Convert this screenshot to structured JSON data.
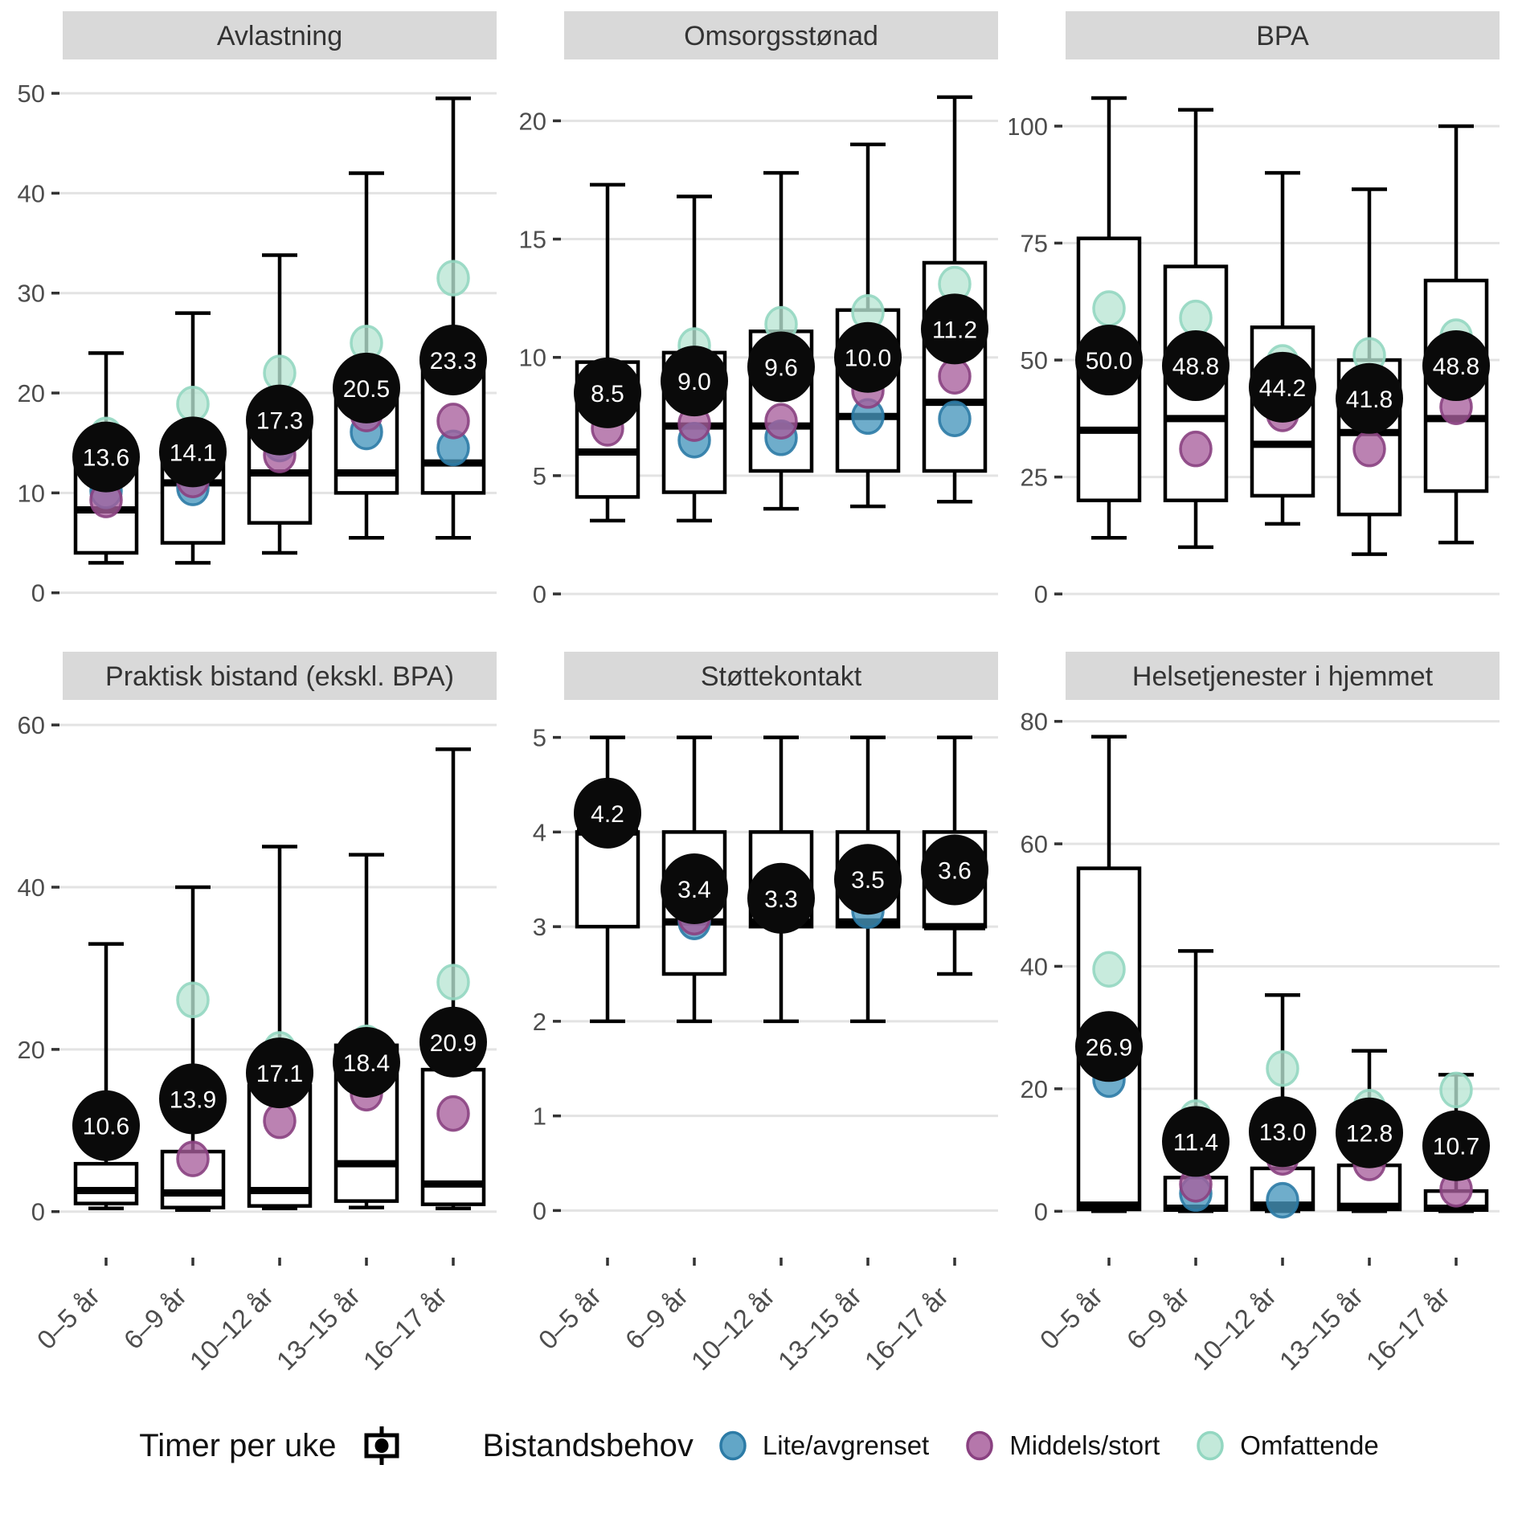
{
  "legend": {
    "mean_label": "Timer per uke",
    "mean_icon": "boxplot-key-icon",
    "group_label": "Bistandsbehov",
    "items": [
      {
        "label": "Lite/avgrenset",
        "fill": "#4796bd",
        "stroke": "#2c7ba6"
      },
      {
        "label": "Middels/stort",
        "fill": "#a85f9c",
        "stroke": "#8a4181"
      },
      {
        "label": "Omfattende",
        "fill": "#b9e5d4",
        "stroke": "#93d7c1"
      }
    ]
  },
  "colors": {
    "strip_bg": "#d9d9d9",
    "strip_text": "#333333",
    "grid": "#e3e3e3",
    "axis_text": "#4d4d4d",
    "tick_mark": "#333333",
    "box_stroke": "#000000",
    "box_fill": "#ffffff",
    "mean_fill": "#0a0a0a",
    "mean_text": "#ffffff",
    "background": "#ffffff"
  },
  "categories": [
    "0–5 år",
    "6–9 år",
    "10–12 år",
    "13–15 år",
    "16–17 år"
  ],
  "chart_data": [
    {
      "type": "boxplot",
      "title": "Avlastning",
      "row": 0,
      "ylim": [
        -2.6,
        52.1
      ],
      "yticks": [
        0,
        10,
        20,
        30,
        40,
        50
      ],
      "boxes": [
        {
          "min": 3,
          "q1": 4,
          "median": 8.3,
          "q3": 13,
          "max": 24,
          "mean_label": "13.6",
          "dots": {
            "lite": 10.2,
            "middels": 9.3,
            "omfattende": 15.8
          }
        },
        {
          "min": 3,
          "q1": 5,
          "median": 11,
          "q3": 15,
          "max": 28,
          "mean_label": "14.1",
          "dots": {
            "lite": 10.5,
            "middels": 11.3,
            "omfattende": 18.9
          }
        },
        {
          "min": 4,
          "q1": 7,
          "median": 12,
          "q3": 18,
          "max": 33.8,
          "mean_label": "17.3",
          "dots": {
            "lite": 14.9,
            "middels": 13.8,
            "omfattende": 22.0
          }
        },
        {
          "min": 5.5,
          "q1": 10,
          "median": 12,
          "q3": 21,
          "max": 42,
          "mean_label": "20.5",
          "dots": {
            "lite": 16.1,
            "middels": 17.9,
            "omfattende": 25.0
          }
        },
        {
          "min": 5.5,
          "q1": 10,
          "median": 13,
          "q3": 24,
          "max": 49.5,
          "mean_label": "23.3",
          "dots": {
            "lite": 14.5,
            "middels": 17.2,
            "omfattende": 31.5
          }
        }
      ]
    },
    {
      "type": "boxplot",
      "title": "Omsorgsstønad",
      "row": 0,
      "ylim": [
        -1.05,
        22.05
      ],
      "yticks": [
        0,
        5,
        10,
        15,
        20
      ],
      "boxes": [
        {
          "min": 3.1,
          "q1": 4.1,
          "median": 6.0,
          "q3": 9.8,
          "max": 17.3,
          "mean_label": "8.5",
          "dots": {
            "lite": null,
            "middels": 7.0,
            "omfattende": null
          }
        },
        {
          "min": 3.1,
          "q1": 4.3,
          "median": 7.1,
          "q3": 10.2,
          "max": 16.8,
          "mean_label": "9.0",
          "dots": {
            "lite": 6.5,
            "middels": 7.2,
            "omfattende": 10.5
          }
        },
        {
          "min": 3.6,
          "q1": 5.2,
          "median": 7.1,
          "q3": 11.1,
          "max": 17.8,
          "mean_label": "9.6",
          "dots": {
            "lite": 6.6,
            "middels": 7.3,
            "omfattende": 11.4
          }
        },
        {
          "min": 3.7,
          "q1": 5.2,
          "median": 7.5,
          "q3": 12.0,
          "max": 19.0,
          "mean_label": "10.0",
          "dots": {
            "lite": 7.5,
            "middels": 8.6,
            "omfattende": 11.9
          }
        },
        {
          "min": 3.9,
          "q1": 5.2,
          "median": 8.1,
          "q3": 14.0,
          "max": 21.0,
          "mean_label": "11.2",
          "dots": {
            "lite": 7.4,
            "middels": 9.2,
            "omfattende": 13.1
          }
        }
      ]
    },
    {
      "type": "boxplot",
      "title": "BPA",
      "row": 0,
      "ylim": [
        -5.3,
        111.5
      ],
      "yticks": [
        0,
        25,
        50,
        75,
        100
      ],
      "boxes": [
        {
          "min": 12,
          "q1": 20,
          "median": 35,
          "q3": 76,
          "max": 106,
          "mean_label": "50.0",
          "dots": {
            "lite": null,
            "middels": null,
            "omfattende": 61
          }
        },
        {
          "min": 10,
          "q1": 20,
          "median": 37.5,
          "q3": 70,
          "max": 103.5,
          "mean_label": "48.8",
          "dots": {
            "lite": null,
            "middels": 31,
            "omfattende": 59
          }
        },
        {
          "min": 15,
          "q1": 21,
          "median": 32,
          "q3": 57,
          "max": 90,
          "mean_label": "44.2",
          "dots": {
            "lite": null,
            "middels": 38.5,
            "omfattende": 49.5
          }
        },
        {
          "min": 8.5,
          "q1": 17,
          "median": 34.5,
          "q3": 50,
          "max": 86.5,
          "mean_label": "41.8",
          "dots": {
            "lite": null,
            "middels": 31,
            "omfattende": 51
          }
        },
        {
          "min": 11,
          "q1": 22,
          "median": 37.5,
          "q3": 67,
          "max": 100,
          "mean_label": "48.8",
          "dots": {
            "lite": null,
            "middels": 40,
            "omfattende": 55
          }
        }
      ]
    },
    {
      "type": "boxplot",
      "title": "Praktisk bistand (ekskl. BPA)",
      "row": 1,
      "ylim": [
        -2.9,
        61.5
      ],
      "yticks": [
        0,
        20,
        40,
        60
      ],
      "boxes": [
        {
          "min": 0.4,
          "q1": 1,
          "median": 2.6,
          "q3": 5.9,
          "max": 33,
          "mean_label": "10.6",
          "dots": {
            "lite": null,
            "middels": null,
            "omfattende": null
          }
        },
        {
          "min": 0.2,
          "q1": 0.5,
          "median": 2.3,
          "q3": 7.4,
          "max": 40,
          "mean_label": "13.9",
          "dots": {
            "lite": null,
            "middels": 6.5,
            "omfattende": 26.1
          }
        },
        {
          "min": 0.4,
          "q1": 0.7,
          "median": 2.6,
          "q3": 15.5,
          "max": 45,
          "mean_label": "17.1",
          "dots": {
            "lite": null,
            "middels": 11.2,
            "omfattende": 20.0
          }
        },
        {
          "min": 0.5,
          "q1": 1.3,
          "median": 5.9,
          "q3": 20.5,
          "max": 44,
          "mean_label": "18.4",
          "dots": {
            "lite": null,
            "middels": 14.6,
            "omfattende": 20.8
          }
        },
        {
          "min": 0.4,
          "q1": 0.9,
          "median": 3.4,
          "q3": 17.5,
          "max": 57,
          "mean_label": "20.9",
          "dots": {
            "lite": null,
            "middels": 12.1,
            "omfattende": 28.3
          }
        }
      ]
    },
    {
      "type": "boxplot",
      "title": "Støttekontakt",
      "row": 1,
      "ylim": [
        -0.26,
        5.26
      ],
      "yticks": [
        0,
        1,
        2,
        3,
        4,
        5
      ],
      "boxes": [
        {
          "min": 2,
          "q1": 3,
          "median": 4,
          "q3": 4,
          "max": 5,
          "mean_label": "4.2",
          "dots": {
            "lite": null,
            "middels": null,
            "omfattende": null
          }
        },
        {
          "min": 2,
          "q1": 2.5,
          "median": 3.05,
          "q3": 4,
          "max": 5,
          "mean_label": "3.4",
          "dots": {
            "lite": 3.05,
            "middels": 3.1,
            "omfattende": null
          }
        },
        {
          "min": 2,
          "q1": 3,
          "median": 3.05,
          "q3": 4,
          "max": 5,
          "mean_label": "3.3",
          "dots": {
            "lite": null,
            "middels": null,
            "omfattende": null
          }
        },
        {
          "min": 2,
          "q1": 3,
          "median": 3.05,
          "q3": 4,
          "max": 5,
          "mean_label": "3.5",
          "dots": {
            "lite": 3.17,
            "middels": null,
            "omfattende": null
          }
        },
        {
          "min": 2.5,
          "q1": 3,
          "median": 3.0,
          "q3": 4,
          "max": 5,
          "mean_label": "3.6",
          "dots": {
            "lite": null,
            "middels": null,
            "omfattende": null
          }
        }
      ]
    },
    {
      "type": "boxplot",
      "title": "Helsetjenester i hjemmet",
      "row": 1,
      "ylim": [
        -3.9,
        81.4
      ],
      "yticks": [
        0,
        20,
        40,
        60,
        80
      ],
      "boxes": [
        {
          "min": 0,
          "q1": 0.3,
          "median": 1.0,
          "q3": 56,
          "max": 77.5,
          "mean_label": "26.9",
          "dots": {
            "lite": 21.5,
            "middels": null,
            "omfattende": 39.5
          }
        },
        {
          "min": 0,
          "q1": 0.2,
          "median": 0.5,
          "q3": 5.5,
          "max": 42.5,
          "mean_label": "11.4",
          "dots": {
            "lite": 2.9,
            "middels": 4.4,
            "omfattende": 15.3
          }
        },
        {
          "min": 0,
          "q1": 0.3,
          "median": 1.0,
          "q3": 7,
          "max": 35.3,
          "mean_label": "13.0",
          "dots": {
            "lite": 1.8,
            "middels": 8.8,
            "omfattende": 23.3
          }
        },
        {
          "min": 0,
          "q1": 0.3,
          "median": 0.8,
          "q3": 7.5,
          "max": 26.2,
          "mean_label": "12.8",
          "dots": {
            "lite": null,
            "middels": 7.9,
            "omfattende": 17.0
          }
        },
        {
          "min": 0,
          "q1": 0.2,
          "median": 0.5,
          "q3": 3.3,
          "max": 22.3,
          "mean_label": "10.7",
          "dots": {
            "lite": null,
            "middels": 3.6,
            "omfattende": 19.8
          }
        }
      ]
    }
  ]
}
